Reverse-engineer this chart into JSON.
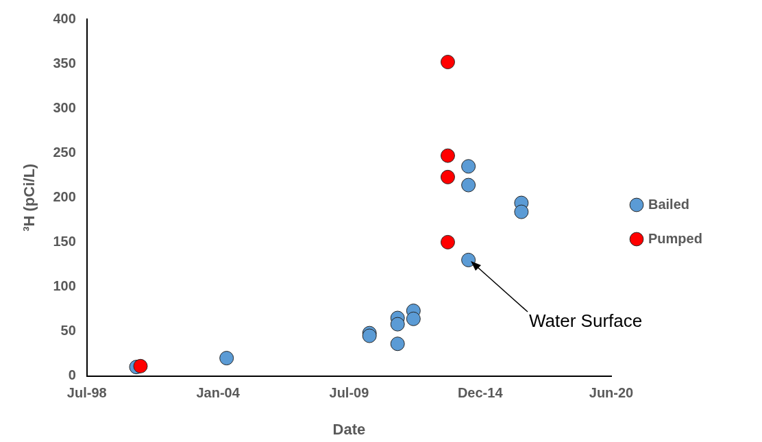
{
  "chart_data": {
    "type": "scatter",
    "xlabel": "Date",
    "ylabel": "³H (pCi/L)",
    "xlim": [
      "1998-07-20",
      "2020-06-15"
    ],
    "xticks": [
      {
        "value": "1998-07-20",
        "label": "Jul-98"
      },
      {
        "value": "2004-01-11",
        "label": "Jan-04"
      },
      {
        "value": "2009-07-03",
        "label": "Jul-09"
      },
      {
        "value": "2014-12-24",
        "label": "Dec-14"
      },
      {
        "value": "2020-06-15",
        "label": "Jun-20"
      }
    ],
    "ylim": [
      0,
      400
    ],
    "yticks": [
      0,
      50,
      100,
      150,
      200,
      250,
      300,
      350,
      400
    ],
    "grid": false,
    "legend": "right",
    "marker": "circle",
    "series": [
      {
        "name": "Bailed",
        "color": "#5b9bd5",
        "x": [
          "2000-08-13",
          "2004-05-21",
          "2010-05-10",
          "2010-05-10",
          "2011-07-13",
          "2011-07-13",
          "2011-07-13",
          "2012-03-11",
          "2012-03-11",
          "2014-06-28",
          "2014-06-28",
          "2014-06-28",
          "2016-09-13",
          "2016-09-13"
        ],
        "values": [
          10,
          20,
          48,
          45,
          65,
          58,
          36,
          73,
          64,
          235,
          214,
          130,
          194,
          184
        ]
      },
      {
        "name": "Pumped",
        "color": "#ff0000",
        "x": [
          "2000-10-15",
          "2013-08-17",
          "2013-08-17",
          "2013-08-17",
          "2013-08-17"
        ],
        "values": [
          11,
          352,
          247,
          223,
          150
        ]
      }
    ],
    "annotations": [
      "Water Surface"
    ]
  }
}
